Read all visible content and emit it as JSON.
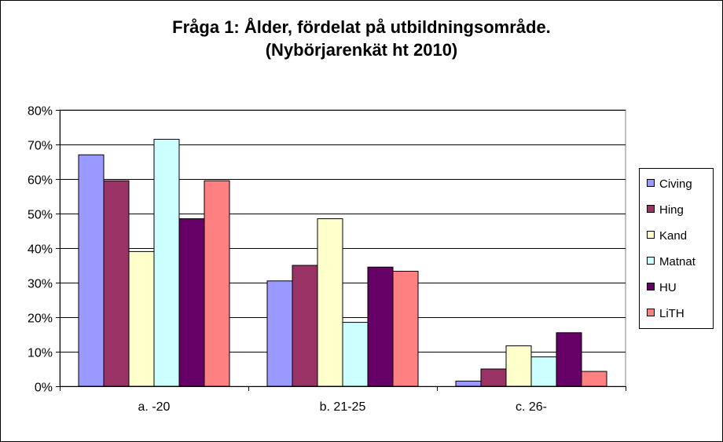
{
  "chart_data": {
    "type": "bar",
    "title": "Fråga 1: Ålder, fördelat på utbildningsområde.",
    "subtitle": "(Nybörjarenkät ht 2010)",
    "xlabel": "",
    "ylabel": "",
    "ylim": [
      0,
      0.8
    ],
    "y_ticks": [
      0,
      0.1,
      0.2,
      0.3,
      0.4,
      0.5,
      0.6,
      0.7,
      0.8
    ],
    "y_tick_labels": [
      "0%",
      "10%",
      "20%",
      "30%",
      "40%",
      "50%",
      "60%",
      "70%",
      "80%"
    ],
    "grid": true,
    "legend_position": "right",
    "categories": [
      "a. -20",
      "b. 21-25",
      "c. 26-"
    ],
    "series": [
      {
        "name": "Civing",
        "color": "#9999ff",
        "values": [
          0.67,
          0.305,
          0.015
        ]
      },
      {
        "name": "Hing",
        "color": "#993366",
        "values": [
          0.595,
          0.35,
          0.05
        ]
      },
      {
        "name": "Kand",
        "color": "#ffffcc",
        "values": [
          0.39,
          0.485,
          0.117
        ]
      },
      {
        "name": "Matnat",
        "color": "#ccffff",
        "values": [
          0.715,
          0.185,
          0.085
        ]
      },
      {
        "name": "HU",
        "color": "#660066",
        "values": [
          0.485,
          0.345,
          0.155
        ]
      },
      {
        "name": "LiTH",
        "color": "#ff8080",
        "values": [
          0.595,
          0.333,
          0.043
        ]
      }
    ]
  }
}
